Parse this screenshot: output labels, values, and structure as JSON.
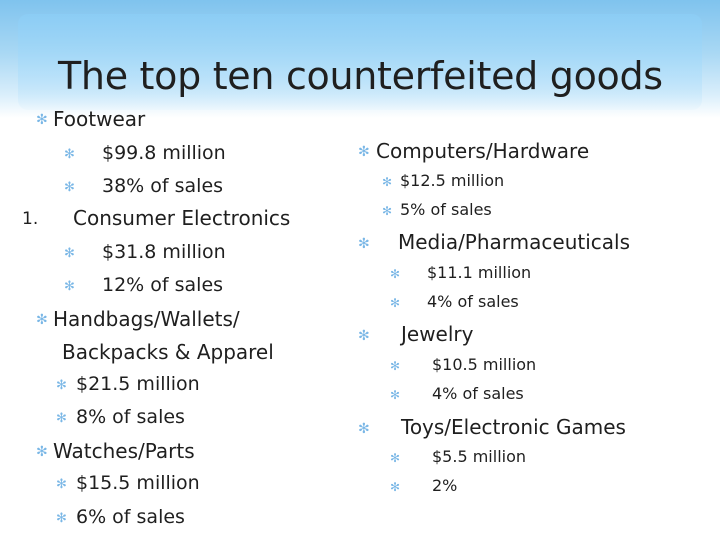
{
  "title": "The top ten counterfeited goods",
  "left": {
    "footwear": {
      "label": "Footwear",
      "value": "$99.8 million",
      "share": "38% of sales"
    },
    "electronics": {
      "number": "1.",
      "label": "Consumer Electronics",
      "value": "$31.8 million",
      "share": "12% of sales"
    },
    "handbags": {
      "label_line1": "Handbags/Wallets/",
      "label_line2": "Backpacks & Apparel",
      "value": "$21.5 million",
      "share": "8% of sales"
    },
    "watches": {
      "label": "Watches/Parts",
      "value": "$15.5 million",
      "share": "6% of sales"
    }
  },
  "right": {
    "computers": {
      "label": "Computers/Hardware",
      "value": "$12.5 million",
      "share": "5% of sales"
    },
    "media": {
      "label": "Media/Pharmaceuticals",
      "value": "$11.1 million",
      "share": "4% of sales"
    },
    "jewelry": {
      "label": "Jewelry",
      "value": "$10.5 million",
      "share": "4% of sales"
    },
    "toys": {
      "label": "Toys/Electronic Games",
      "value": "$5.5 million",
      "share": "2%"
    }
  },
  "bullet_glyph": "✻",
  "colors": {
    "accent": "#7ab7e6",
    "text": "#1f1f1f"
  }
}
